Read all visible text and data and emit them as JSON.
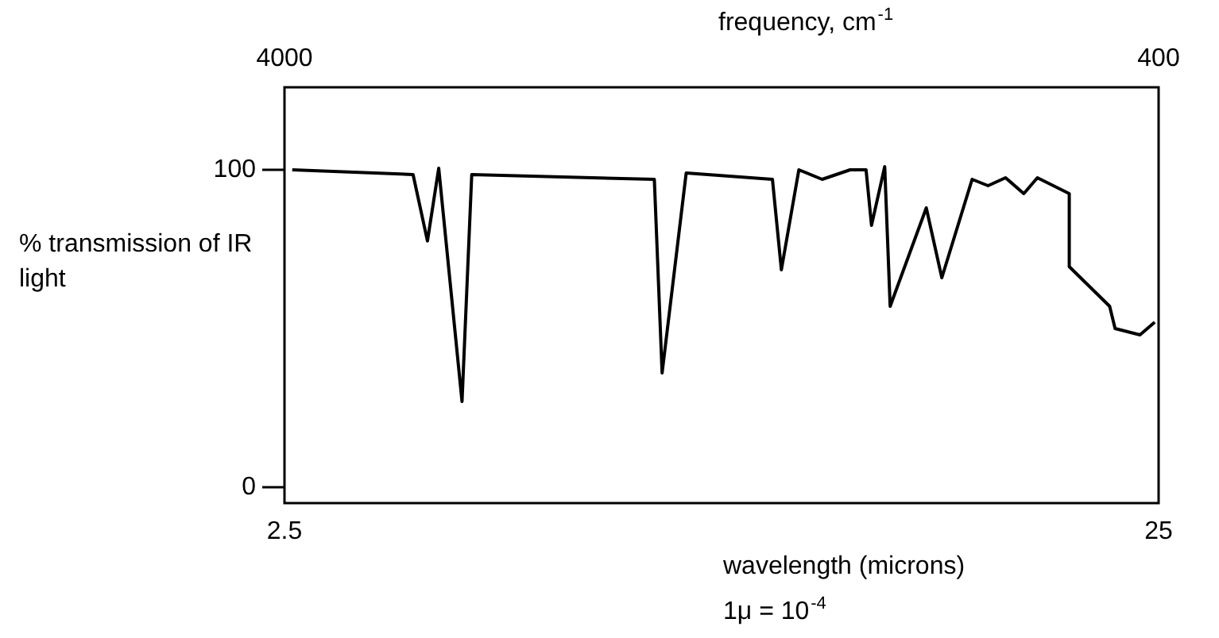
{
  "chart_data": {
    "type": "line",
    "xlabel": "wavelength (microns)",
    "x2label": "frequency, cm$^{-1}$",
    "ylabel": "% transmission of IR light",
    "annotations": [
      "1μ = 10$^{-4}$"
    ],
    "xlim": [
      2.5,
      25
    ],
    "xticks": [
      2.5,
      25
    ],
    "x2lim": [
      4000,
      400
    ],
    "x2ticks": [
      4000,
      400
    ],
    "ylim": [
      -5,
      126
    ],
    "yticks": [
      0,
      100
    ],
    "series": [
      {
        "color": "#000000",
        "x": [
          2.7,
          5.81,
          6.18,
          6.47,
          7.07,
          7.32,
          12.02,
          12.22,
          12.84,
          15.06,
          15.29,
          15.74,
          16.34,
          17.06,
          17.47,
          17.61,
          17.95,
          18.09,
          19.02,
          19.42,
          20.2,
          20.61,
          21.06,
          21.53,
          21.88,
          22.7,
          22.7,
          23.74,
          23.88,
          24.52,
          24.9
        ],
        "values": [
          100,
          98.5,
          77.6,
          100.5,
          27,
          98.5,
          97,
          36,
          99,
          97,
          68.5,
          100,
          97,
          100,
          100,
          82.5,
          101,
          57,
          88,
          66,
          97,
          95,
          97.5,
          92.5,
          97.5,
          92.5,
          69.5,
          57,
          50,
          48,
          52
        ]
      }
    ]
  }
}
